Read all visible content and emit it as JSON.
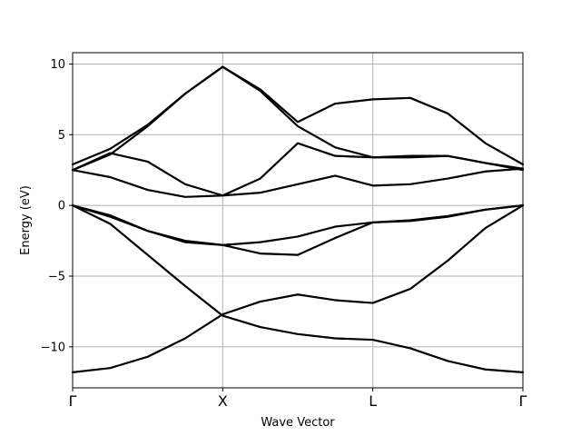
{
  "chart_data": {
    "type": "line",
    "title": "",
    "xlabel": "Wave Vector",
    "ylabel": "Energy (eV)",
    "grid": true,
    "legend": "none",
    "line_color": "#000000",
    "grid_color": "#b0b0b0",
    "xlim": [
      0,
      12
    ],
    "ylim": [
      -12.9,
      10.8
    ],
    "x_ticks": [
      {
        "value": 0,
        "label": "Γ"
      },
      {
        "value": 4,
        "label": "X"
      },
      {
        "value": 8,
        "label": "L"
      },
      {
        "value": 12,
        "label": "Γ"
      }
    ],
    "y_ticks": [
      {
        "value": 10,
        "label": "10"
      },
      {
        "value": 5,
        "label": "5"
      },
      {
        "value": 0,
        "label": "0"
      },
      {
        "value": -5,
        "label": "−5"
      },
      {
        "value": -10,
        "label": "−10"
      }
    ],
    "x": [
      0,
      1,
      2,
      3,
      4,
      5,
      6,
      7,
      8,
      9,
      10,
      11,
      12
    ],
    "series": [
      {
        "values": [
          -11.8,
          -11.5,
          -10.7,
          -9.4,
          -7.7,
          -6.8,
          -6.3,
          -6.7,
          -6.9,
          -5.9,
          -3.9,
          -1.6,
          0.0
        ]
      },
      {
        "values": [
          0.0,
          -1.3,
          -3.5,
          -5.7,
          -7.8,
          -8.6,
          -9.1,
          -9.4,
          -9.5,
          -10.1,
          -11.0,
          -11.6,
          -11.8
        ]
      },
      {
        "values": [
          0.0,
          -0.8,
          -1.8,
          -2.5,
          -2.8,
          -3.4,
          -3.5,
          -2.3,
          -1.2,
          -1.1,
          -0.8,
          -0.3,
          0.0
        ]
      },
      {
        "values": [
          0.0,
          -0.7,
          -1.8,
          -2.6,
          -2.8,
          -2.6,
          -2.2,
          -1.5,
          -1.2,
          -1.05,
          -0.75,
          -0.3,
          0.0
        ]
      },
      {
        "values": [
          2.5,
          2.0,
          1.1,
          0.6,
          0.7,
          0.9,
          1.5,
          2.1,
          1.4,
          1.5,
          1.9,
          2.4,
          2.6
        ]
      },
      {
        "values": [
          2.5,
          3.7,
          3.1,
          1.5,
          0.7,
          1.9,
          4.4,
          3.5,
          3.4,
          3.5,
          3.5,
          3.0,
          2.6
        ]
      },
      {
        "values": [
          2.5,
          3.6,
          5.6,
          7.9,
          9.8,
          8.1,
          5.6,
          4.1,
          3.4,
          3.4,
          3.5,
          3.0,
          2.5
        ]
      },
      {
        "values": [
          2.9,
          4.0,
          5.7,
          7.9,
          9.8,
          8.2,
          5.9,
          7.2,
          7.5,
          7.6,
          6.5,
          4.4,
          2.9
        ]
      }
    ]
  }
}
